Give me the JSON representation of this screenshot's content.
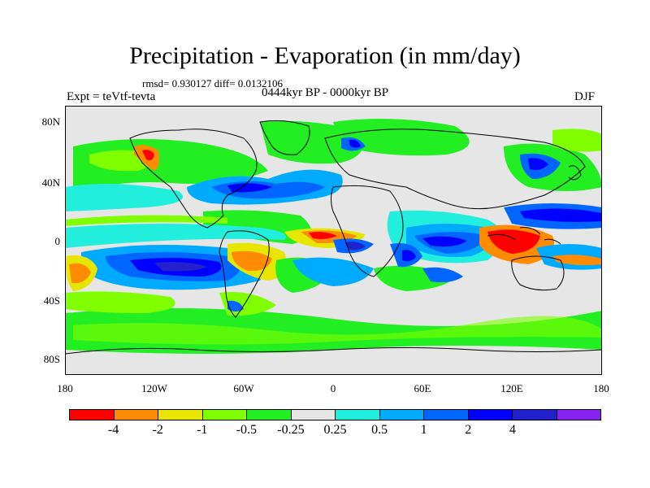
{
  "title": "Precipitation - Evaporation (in mm/day)",
  "stats": "rmsd= 0.930127 diff= 0.0132106",
  "experiment": "Expt = teVtf-tevta",
  "period": "0444kyr BP - 0000kyr BP",
  "season": "DJF",
  "lat_ticks": [
    "80N",
    "40N",
    "0",
    "40S",
    "80S"
  ],
  "lon_ticks": [
    "180",
    "120W",
    "60W",
    "0",
    "60E",
    "120E",
    "180"
  ],
  "colorbar": {
    "colors": [
      "#ff0000",
      "#ff8c00",
      "#e6e600",
      "#80ff00",
      "#22ee22",
      "#e6e6e6",
      "#22eedd",
      "#00aaff",
      "#0066ff",
      "#0000ff",
      "#2222cc",
      "#8822ee"
    ],
    "labels": [
      "-4",
      "-2",
      "-1",
      "-0.5",
      "-0.25",
      "0.25",
      "0.5",
      "1",
      "2",
      "4"
    ]
  }
}
